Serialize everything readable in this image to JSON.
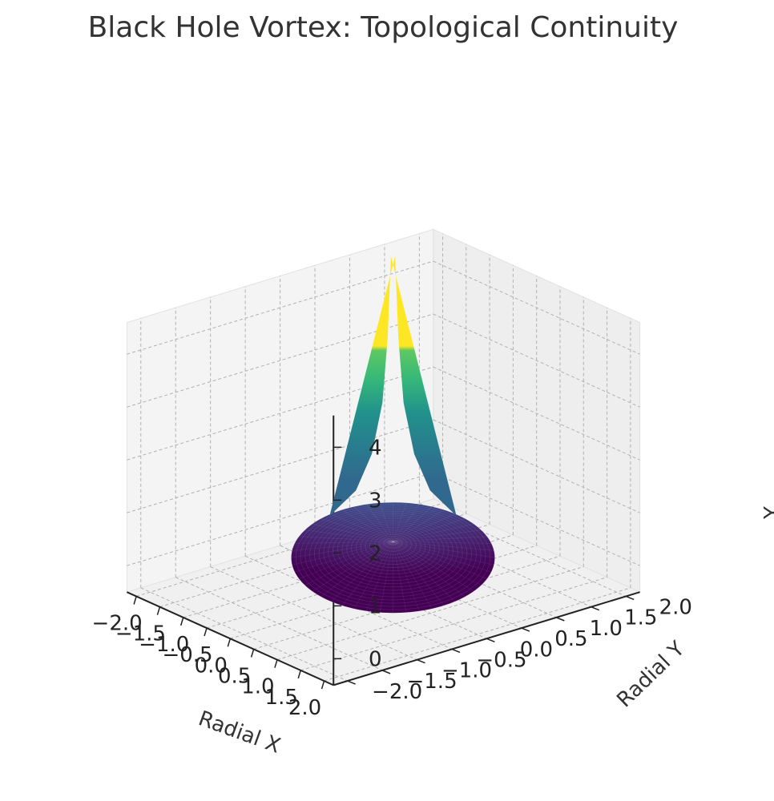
{
  "chart_data": {
    "type": "surface3d",
    "title": "Black Hole Vortex: Topological Continuity",
    "xlabel": "Radial X",
    "ylabel": "Radial Y",
    "zlabel": "Y",
    "xlim": [
      -2.2,
      2.2
    ],
    "ylim": [
      -2.2,
      2.2
    ],
    "zlim": [
      -0.5,
      4.6
    ],
    "x_ticks": [
      "−2.0",
      "−1.5",
      "−1.0",
      "−0.5",
      "0.0",
      "0.5",
      "1.0",
      "1.5",
      "2.0"
    ],
    "y_ticks": [
      "−2.0",
      "−1.5",
      "−1.0",
      "−0.5",
      "0.0",
      "0.5",
      "1.0",
      "1.5",
      "2.0"
    ],
    "z_ticks": [
      "0",
      "1",
      "2",
      "3",
      "4"
    ],
    "x_tick_values": [
      -2.0,
      -1.5,
      -1.0,
      -0.5,
      0.0,
      0.5,
      1.0,
      1.5,
      2.0
    ],
    "y_tick_values": [
      -2.0,
      -1.5,
      -1.0,
      -0.5,
      0.0,
      0.5,
      1.0,
      1.5,
      2.0
    ],
    "z_tick_values": [
      0,
      1,
      2,
      3,
      4
    ],
    "surface": {
      "shape": "disk",
      "radius": 2.0,
      "z_peak_at_center": 3.9,
      "z_at_edge": 0.0,
      "colormap": "viridis",
      "radial_profile": [
        {
          "r": 0.02,
          "z": 3.9
        },
        {
          "r": 0.05,
          "z": 2.8
        },
        {
          "r": 0.1,
          "z": 1.9
        },
        {
          "r": 0.2,
          "z": 1.2
        },
        {
          "r": 0.35,
          "z": 0.7
        },
        {
          "r": 0.6,
          "z": 0.35
        },
        {
          "r": 1.0,
          "z": 0.15
        },
        {
          "r": 1.5,
          "z": 0.05
        },
        {
          "r": 2.0,
          "z": 0.0
        }
      ]
    },
    "grid": true,
    "grid_style": "dashed",
    "pane_color": "#f2f2f2",
    "colors": {
      "viridis_low": "#440154",
      "viridis_mid": "#21918c",
      "viridis_high": "#fde725"
    }
  }
}
